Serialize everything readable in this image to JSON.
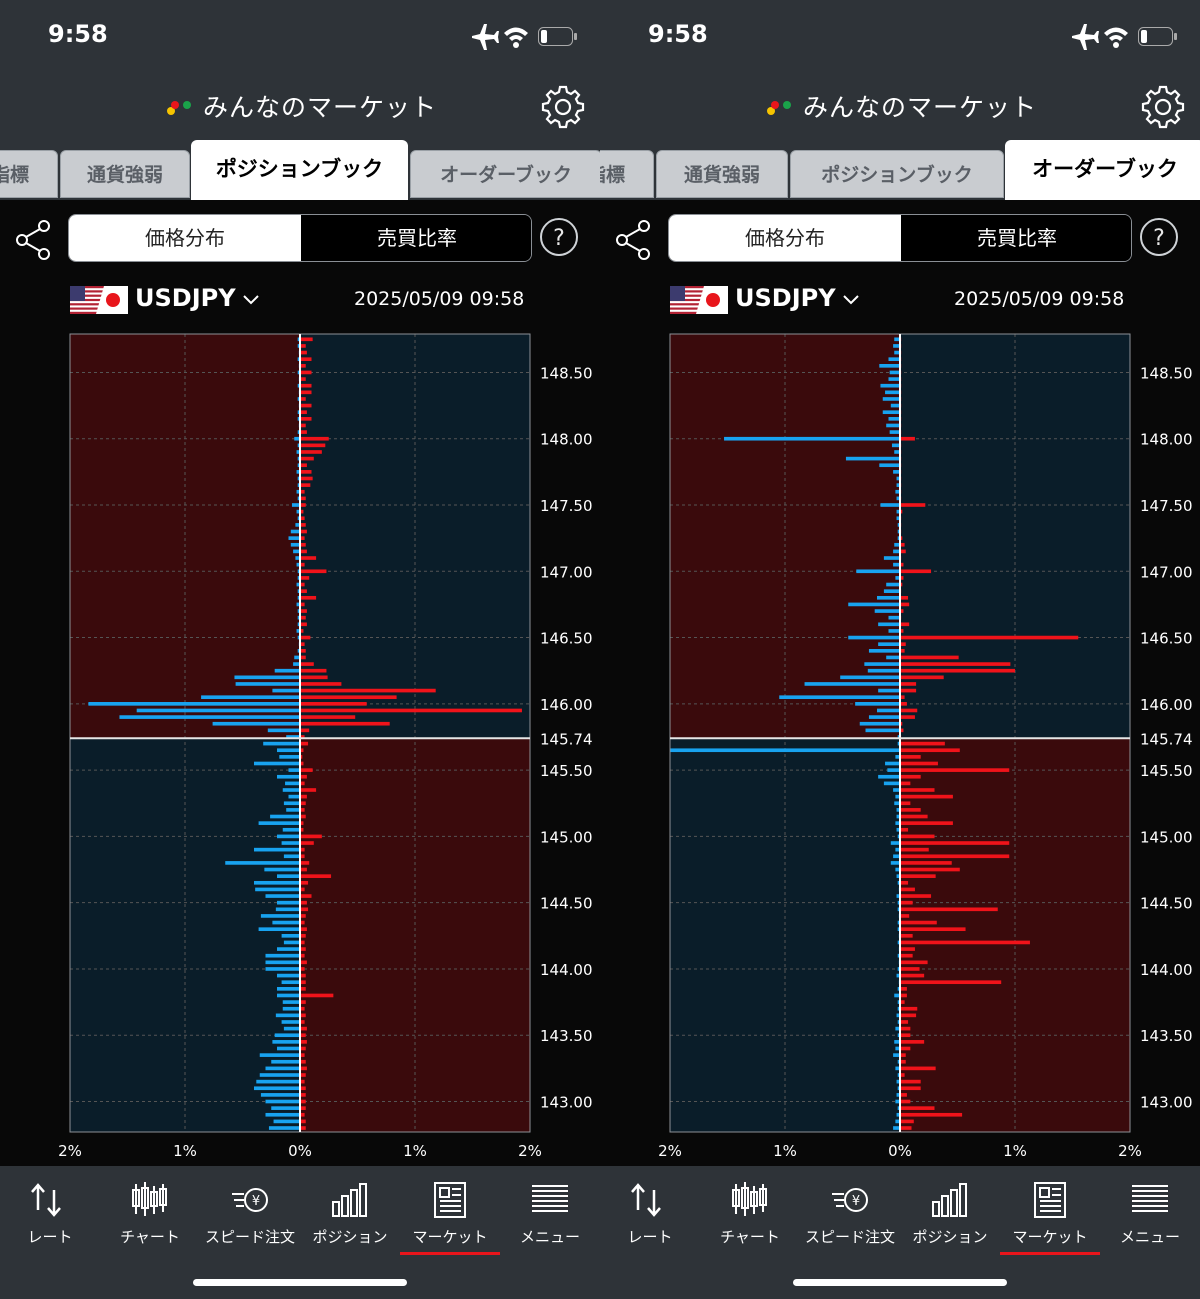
{
  "status_bar": {
    "time": "9:58"
  },
  "app_title": "みんなのマーケット",
  "segments": {
    "left": "価格分布",
    "right": "売買比率"
  },
  "help_label": "?",
  "instrument": {
    "pair": "USDJPY",
    "datetime": "2025/05/09 09:58"
  },
  "chart_axes": {
    "x_tick_labels": [
      "2%",
      "1%",
      "0%",
      "1%",
      "2%"
    ],
    "x_range_percent": [
      -2,
      2
    ],
    "y_range": [
      142.77,
      148.79
    ],
    "y_tick_values": [
      143.0,
      143.5,
      144.0,
      144.5,
      145.0,
      145.5,
      146.0,
      146.5,
      147.0,
      147.5,
      148.0,
      148.5
    ],
    "y_tick_labels": [
      "143.00",
      "143.50",
      "144.00",
      "144.50",
      "145.00",
      "145.50",
      "146.00",
      "146.50",
      "147.00",
      "147.50",
      "148.00",
      "148.50"
    ],
    "current_price": 145.74,
    "current_price_label": "145.74"
  },
  "colors": {
    "buy_bar": "#18a3f0",
    "sell_bar": "#f0131a",
    "loss_zone": "#3a0a0c",
    "profit_zone": "#0a1d29",
    "accent_red": "#e8151b"
  },
  "nav": [
    {
      "label": "レート",
      "icon": "rate-arrows-icon"
    },
    {
      "label": "チャート",
      "icon": "candlestick-icon"
    },
    {
      "label": "スピード注文",
      "icon": "speed-order-icon"
    },
    {
      "label": "ポジション",
      "icon": "position-bars-icon"
    },
    {
      "label": "マーケット",
      "icon": "market-news-icon",
      "selected": true
    },
    {
      "label": "メニュー",
      "icon": "menu-lines-icon"
    }
  ],
  "screens": [
    {
      "tabs": [
        {
          "label": "指標",
          "active": false
        },
        {
          "label": "通貨強弱",
          "active": false
        },
        {
          "label": "ポジションブック",
          "active": true
        },
        {
          "label": "オーダーブック",
          "active": false
        }
      ]
    },
    {
      "tabs": [
        {
          "label": "指標",
          "active": false
        },
        {
          "label": "通貨強弱",
          "active": false
        },
        {
          "label": "ポジションブック",
          "active": false
        },
        {
          "label": "オーダーブック",
          "active": true
        }
      ]
    }
  ],
  "chart_data": [
    {
      "type": "bar",
      "title": "ポジションブック",
      "orientation": "horizontal",
      "y": [
        148.75,
        148.7,
        148.65,
        148.6,
        148.55,
        148.5,
        148.45,
        148.4,
        148.35,
        148.3,
        148.25,
        148.2,
        148.15,
        148.1,
        148.05,
        148.0,
        147.95,
        147.9,
        147.85,
        147.8,
        147.75,
        147.7,
        147.65,
        147.6,
        147.55,
        147.5,
        147.45,
        147.4,
        147.35,
        147.3,
        147.25,
        147.2,
        147.15,
        147.1,
        147.05,
        147.0,
        146.95,
        146.9,
        146.85,
        146.8,
        146.75,
        146.7,
        146.65,
        146.6,
        146.55,
        146.5,
        146.45,
        146.4,
        146.35,
        146.3,
        146.25,
        146.2,
        146.15,
        146.1,
        146.05,
        146.0,
        145.95,
        145.9,
        145.85,
        145.8,
        145.75,
        145.7,
        145.65,
        145.6,
        145.55,
        145.5,
        145.45,
        145.4,
        145.35,
        145.3,
        145.25,
        145.2,
        145.15,
        145.1,
        145.05,
        145.0,
        144.95,
        144.9,
        144.85,
        144.8,
        144.75,
        144.7,
        144.65,
        144.6,
        144.55,
        144.5,
        144.45,
        144.4,
        144.35,
        144.3,
        144.25,
        144.2,
        144.15,
        144.1,
        144.05,
        144.0,
        143.95,
        143.9,
        143.85,
        143.8,
        143.75,
        143.7,
        143.65,
        143.6,
        143.55,
        143.5,
        143.45,
        143.4,
        143.35,
        143.3,
        143.25,
        143.2,
        143.15,
        143.1,
        143.05,
        143.0,
        142.95,
        142.9,
        142.85,
        142.8
      ],
      "series": [
        {
          "values": [
            0.02,
            0.02,
            0.01,
            0.02,
            0.01,
            0.02,
            0.01,
            0.02,
            0.01,
            0.02,
            0.01,
            0.02,
            0.02,
            0.01,
            0.02,
            0.05,
            0.02,
            0.03,
            0.02,
            0.02,
            0.03,
            0.02,
            0.02,
            0.03,
            0.02,
            0.07,
            0.03,
            0.02,
            0.04,
            0.08,
            0.1,
            0.08,
            0.06,
            0.04,
            0.03,
            0.02,
            0.02,
            0.03,
            0.02,
            0.02,
            0.03,
            0.02,
            0.02,
            0.02,
            0.03,
            0.02,
            0.01,
            0.02,
            0.05,
            0.06,
            0.22,
            0.57,
            0.56,
            0.24,
            0.86,
            1.84,
            1.42,
            1.57,
            0.76,
            0.28,
            0.12,
            0.32,
            0.2,
            0.18,
            0.4,
            0.1,
            0.2,
            0.13,
            0.15,
            0.1,
            0.14,
            0.12,
            0.26,
            0.36,
            0.15,
            0.2,
            0.16,
            0.4,
            0.14,
            0.65,
            0.31,
            0.2,
            0.4,
            0.39,
            0.3,
            0.2,
            0.21,
            0.34,
            0.24,
            0.36,
            0.16,
            0.14,
            0.2,
            0.3,
            0.3,
            0.3,
            0.2,
            0.16,
            0.2,
            0.2,
            0.15,
            0.15,
            0.21,
            0.16,
            0.14,
            0.22,
            0.24,
            0.2,
            0.35,
            0.25,
            0.3,
            0.35,
            0.38,
            0.4,
            0.34,
            0.3,
            0.25,
            0.3,
            0.23,
            0.27
          ]
        },
        {
          "values": [
            0.11,
            0.05,
            0.06,
            0.1,
            0.05,
            0.1,
            0.05,
            0.1,
            0.1,
            0.05,
            0.1,
            0.06,
            0.1,
            0.05,
            0.06,
            0.25,
            0.22,
            0.19,
            0.12,
            0.06,
            0.1,
            0.11,
            0.09,
            0.04,
            0.05,
            0.05,
            0.03,
            0.04,
            0.05,
            0.06,
            0.04,
            0.05,
            0.06,
            0.14,
            0.04,
            0.23,
            0.08,
            0.04,
            0.06,
            0.14,
            0.04,
            0.06,
            0.05,
            0.06,
            0.03,
            0.09,
            0.04,
            0.05,
            0.05,
            0.12,
            0.23,
            0.24,
            0.36,
            1.18,
            0.84,
            0.58,
            1.93,
            0.48,
            0.78,
            0.08,
            0.04,
            0.07,
            0.03,
            0.02,
            0.03,
            0.11,
            0.06,
            0.04,
            0.14,
            0.06,
            0.05,
            0.04,
            0.05,
            0.03,
            0.03,
            0.19,
            0.12,
            0.04,
            0.04,
            0.08,
            0.06,
            0.27,
            0.07,
            0.04,
            0.1,
            0.06,
            0.07,
            0.05,
            0.04,
            0.06,
            0.05,
            0.04,
            0.05,
            0.04,
            0.06,
            0.04,
            0.05,
            0.05,
            0.05,
            0.29,
            0.05,
            0.04,
            0.05,
            0.04,
            0.06,
            0.05,
            0.06,
            0.05,
            0.04,
            0.05,
            0.06,
            0.05,
            0.04,
            0.05,
            0.05,
            0.05,
            0.05,
            0.04,
            0.05,
            0.05
          ]
        }
      ]
    },
    {
      "type": "bar",
      "title": "オーダーブック",
      "orientation": "horizontal",
      "y": [
        148.75,
        148.7,
        148.65,
        148.6,
        148.55,
        148.5,
        148.45,
        148.4,
        148.35,
        148.3,
        148.25,
        148.2,
        148.15,
        148.1,
        148.05,
        148.0,
        147.95,
        147.9,
        147.85,
        147.8,
        147.75,
        147.7,
        147.65,
        147.6,
        147.55,
        147.5,
        147.45,
        147.4,
        147.35,
        147.3,
        147.25,
        147.2,
        147.15,
        147.1,
        147.05,
        147.0,
        146.95,
        146.9,
        146.85,
        146.8,
        146.75,
        146.7,
        146.65,
        146.6,
        146.55,
        146.5,
        146.45,
        146.4,
        146.35,
        146.3,
        146.25,
        146.2,
        146.15,
        146.1,
        146.05,
        146.0,
        145.95,
        145.9,
        145.85,
        145.8,
        145.75,
        145.7,
        145.65,
        145.6,
        145.55,
        145.5,
        145.45,
        145.4,
        145.35,
        145.3,
        145.25,
        145.2,
        145.15,
        145.1,
        145.05,
        145.0,
        144.95,
        144.9,
        144.85,
        144.8,
        144.75,
        144.7,
        144.65,
        144.6,
        144.55,
        144.5,
        144.45,
        144.4,
        144.35,
        144.3,
        144.25,
        144.2,
        144.15,
        144.1,
        144.05,
        144.0,
        143.95,
        143.9,
        143.85,
        143.8,
        143.75,
        143.7,
        143.65,
        143.6,
        143.55,
        143.5,
        143.45,
        143.4,
        143.35,
        143.3,
        143.25,
        143.2,
        143.15,
        143.1,
        143.05,
        143.0,
        142.95,
        142.9,
        142.85,
        142.8
      ],
      "series": [
        {
          "values": [
            0.05,
            0.06,
            0.05,
            0.1,
            0.18,
            0.09,
            0.1,
            0.17,
            0.13,
            0.15,
            0.08,
            0.15,
            0.1,
            0.12,
            0.09,
            1.53,
            0.07,
            0.05,
            0.47,
            0.18,
            0.06,
            0.03,
            0.03,
            0.04,
            0.03,
            0.17,
            0.03,
            0.03,
            0.02,
            0.02,
            0.02,
            0.05,
            0.06,
            0.14,
            0.06,
            0.38,
            0.04,
            0.12,
            0.14,
            0.2,
            0.45,
            0.22,
            0.1,
            0.19,
            0.1,
            0.45,
            0.19,
            0.27,
            0.12,
            0.31,
            0.28,
            0.52,
            0.83,
            0.19,
            1.05,
            0.39,
            0.2,
            0.27,
            0.35,
            0.3,
            0.02,
            0.02,
            2.0,
            0.04,
            0.13,
            0.11,
            0.19,
            0.14,
            0.06,
            0.04,
            0.05,
            0.03,
            0.03,
            0.04,
            0.03,
            0.02,
            0.08,
            0.04,
            0.06,
            0.08,
            0.04,
            0.03,
            0.02,
            0.01,
            0.03,
            0.02,
            0.02,
            0.01,
            0.02,
            0.02,
            0.01,
            0.02,
            0.01,
            0.02,
            0.01,
            0.02,
            0.03,
            0.01,
            0.02,
            0.05,
            0.02,
            0.02,
            0.03,
            0.02,
            0.04,
            0.02,
            0.05,
            0.04,
            0.06,
            0.02,
            0.04,
            0.02,
            0.03,
            0.02,
            0.03,
            0.04,
            0.02,
            0.03,
            0.04,
            0.06
          ]
        },
        {
          "values": [
            0.01,
            0.01,
            0.01,
            0.01,
            0.01,
            0.01,
            0.01,
            0.01,
            0.01,
            0.01,
            0.01,
            0.01,
            0.01,
            0.01,
            0.01,
            0.13,
            0.01,
            0.01,
            0.01,
            0.01,
            0.01,
            0.01,
            0.01,
            0.01,
            0.01,
            0.22,
            0.02,
            0.01,
            0.01,
            0.01,
            0.02,
            0.04,
            0.05,
            0.01,
            0.03,
            0.27,
            0.03,
            0.02,
            0.01,
            0.07,
            0.08,
            0.03,
            0.01,
            0.08,
            0.03,
            1.55,
            0.05,
            0.04,
            0.51,
            0.96,
            1.0,
            0.38,
            0.14,
            0.14,
            0.04,
            0.06,
            0.15,
            0.13,
            0.02,
            0.03,
            0.01,
            0.39,
            0.52,
            0.18,
            0.33,
            0.95,
            0.18,
            0.09,
            0.3,
            0.46,
            0.09,
            0.18,
            0.24,
            0.46,
            0.07,
            0.3,
            0.95,
            0.25,
            0.95,
            0.45,
            0.52,
            0.31,
            0.07,
            0.13,
            0.27,
            0.11,
            0.85,
            0.08,
            0.32,
            0.57,
            0.11,
            1.13,
            0.13,
            0.11,
            0.24,
            0.17,
            0.21,
            0.88,
            0.06,
            0.06,
            0.04,
            0.15,
            0.14,
            0.07,
            0.09,
            0.09,
            0.21,
            0.09,
            0.05,
            0.05,
            0.31,
            0.04,
            0.18,
            0.18,
            0.06,
            0.09,
            0.3,
            0.54,
            0.12,
            0.1
          ]
        }
      ]
    }
  ]
}
